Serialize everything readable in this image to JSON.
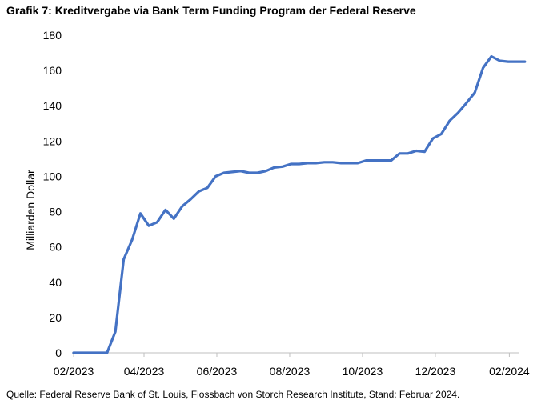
{
  "figure": {
    "title": "Grafik 7: Kreditvergabe via Bank Term Funding Program der Federal Reserve",
    "source": "Quelle: Federal Reserve Bank of St. Louis, Flossbach von Storch Research Institute, Stand: Februar 2024."
  },
  "colors": {
    "series": "#4472C4",
    "axis": "#BFBFBF"
  },
  "chart_data": {
    "type": "line",
    "title": "Grafik 7: Kreditvergabe via Bank Term Funding Program der Federal Reserve",
    "xlabel": "",
    "ylabel": "Milliarden Dollar",
    "ylim": [
      0,
      180
    ],
    "yticks": [
      "0",
      "20",
      "40",
      "60",
      "80",
      "100",
      "120",
      "140",
      "160",
      "180"
    ],
    "xticks": [
      "02/2023",
      "04/2023",
      "06/2023",
      "08/2023",
      "10/2023",
      "12/2023",
      "02/2024"
    ],
    "grid": false,
    "legend": "none",
    "series": [
      {
        "x": [
          "2023-02-01",
          "2023-02-08",
          "2023-02-15",
          "2023-02-22",
          "2023-03-01",
          "2023-03-08",
          "2023-03-15",
          "2023-03-22",
          "2023-03-29",
          "2023-04-05",
          "2023-04-12",
          "2023-04-19",
          "2023-04-26",
          "2023-05-03",
          "2023-05-10",
          "2023-05-17",
          "2023-05-24",
          "2023-05-31",
          "2023-06-07",
          "2023-06-14",
          "2023-06-21",
          "2023-06-28",
          "2023-07-05",
          "2023-07-12",
          "2023-07-19",
          "2023-07-26",
          "2023-08-02",
          "2023-08-09",
          "2023-08-16",
          "2023-08-23",
          "2023-08-30",
          "2023-09-06",
          "2023-09-13",
          "2023-09-20",
          "2023-09-27",
          "2023-10-04",
          "2023-10-11",
          "2023-10-18",
          "2023-10-25",
          "2023-11-01",
          "2023-11-08",
          "2023-11-15",
          "2023-11-22",
          "2023-11-29",
          "2023-12-06",
          "2023-12-13",
          "2023-12-20",
          "2023-12-27",
          "2024-01-03",
          "2024-01-10",
          "2024-01-17",
          "2024-01-24",
          "2024-01-31",
          "2024-02-07",
          "2024-02-14"
        ],
        "values": [
          0,
          0,
          0,
          0,
          0,
          12,
          53,
          64,
          79,
          72,
          74,
          81,
          76,
          83,
          87,
          91.5,
          93.5,
          100,
          102,
          102.5,
          103,
          102,
          102,
          103,
          105,
          105.5,
          107,
          107,
          107.5,
          107.5,
          108,
          108,
          107.5,
          107.5,
          107.5,
          109,
          109,
          109,
          109,
          113,
          113,
          114.5,
          114,
          121.5,
          124,
          131.5,
          136,
          141.5,
          147.5,
          161.5,
          168,
          165.5,
          165,
          165,
          165
        ]
      }
    ]
  }
}
